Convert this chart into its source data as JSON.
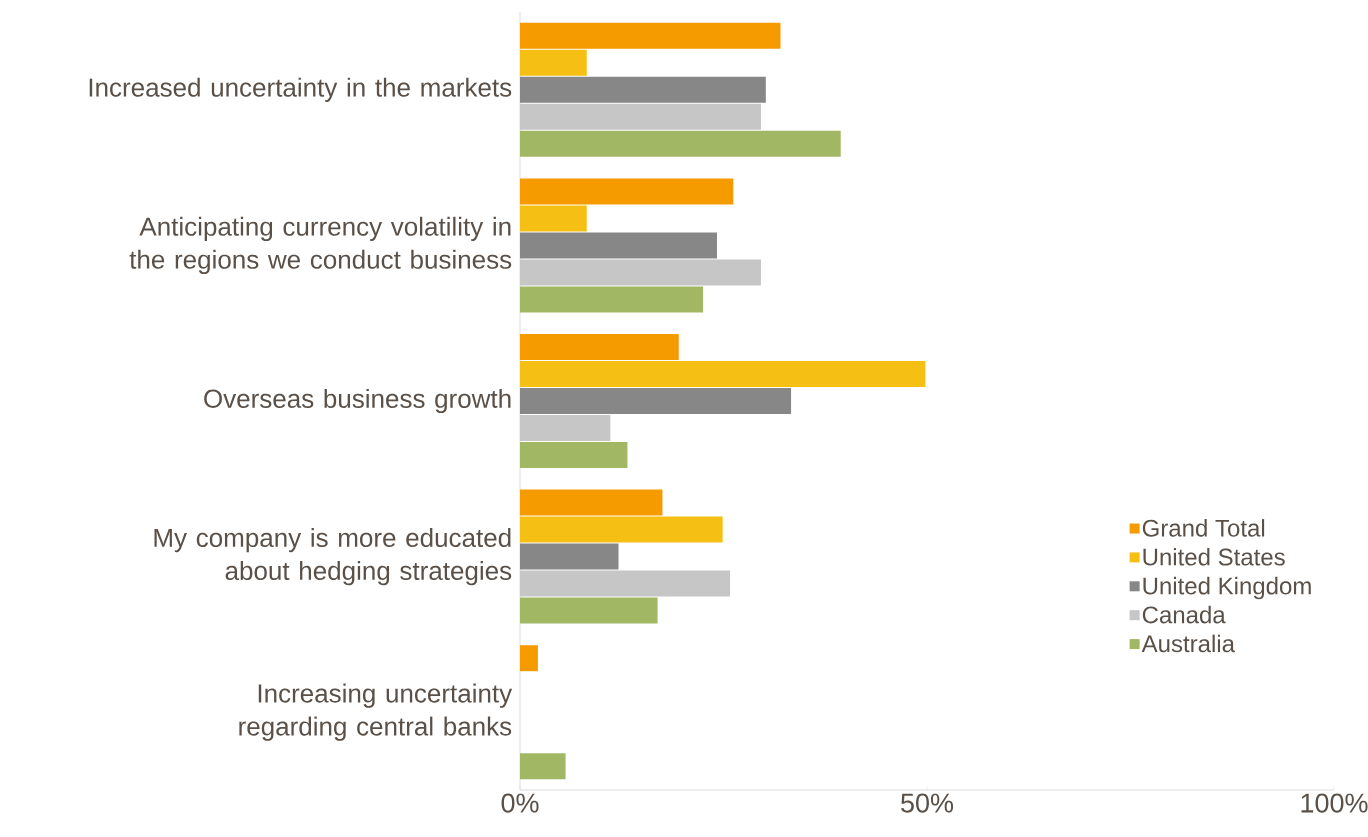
{
  "chart_data": {
    "type": "bar",
    "orientation": "horizontal",
    "categories": [
      "Increased uncertainty in the markets",
      "Anticipating currency volatility in the regions we conduct business",
      "Overseas business growth",
      "My company is more educated about hedging strategies",
      "Increasing uncertainty regarding central banks"
    ],
    "series": [
      {
        "name": "Grand Total",
        "color": "#f59b00",
        "values": [
          32.0,
          26.2,
          19.5,
          17.5,
          2.2
        ]
      },
      {
        "name": "United States",
        "color": "#f5c013",
        "values": [
          8.2,
          8.2,
          49.8,
          24.9,
          null
        ]
      },
      {
        "name": "United Kingdom",
        "color": "#878787",
        "values": [
          30.2,
          24.2,
          33.3,
          12.1,
          null
        ]
      },
      {
        "name": "Canada",
        "color": "#c6c6c6",
        "values": [
          29.6,
          29.6,
          11.1,
          25.8,
          null
        ]
      },
      {
        "name": "Australia",
        "color": "#a2b764",
        "values": [
          39.4,
          22.5,
          13.2,
          16.9,
          5.6
        ]
      }
    ],
    "xlim": [
      0,
      100
    ],
    "xticks": [
      {
        "value": 0,
        "label": "0%"
      },
      {
        "value": 50,
        "label": "50%"
      },
      {
        "value": 100,
        "label": "100%"
      }
    ],
    "grid": false,
    "legend": "right"
  }
}
